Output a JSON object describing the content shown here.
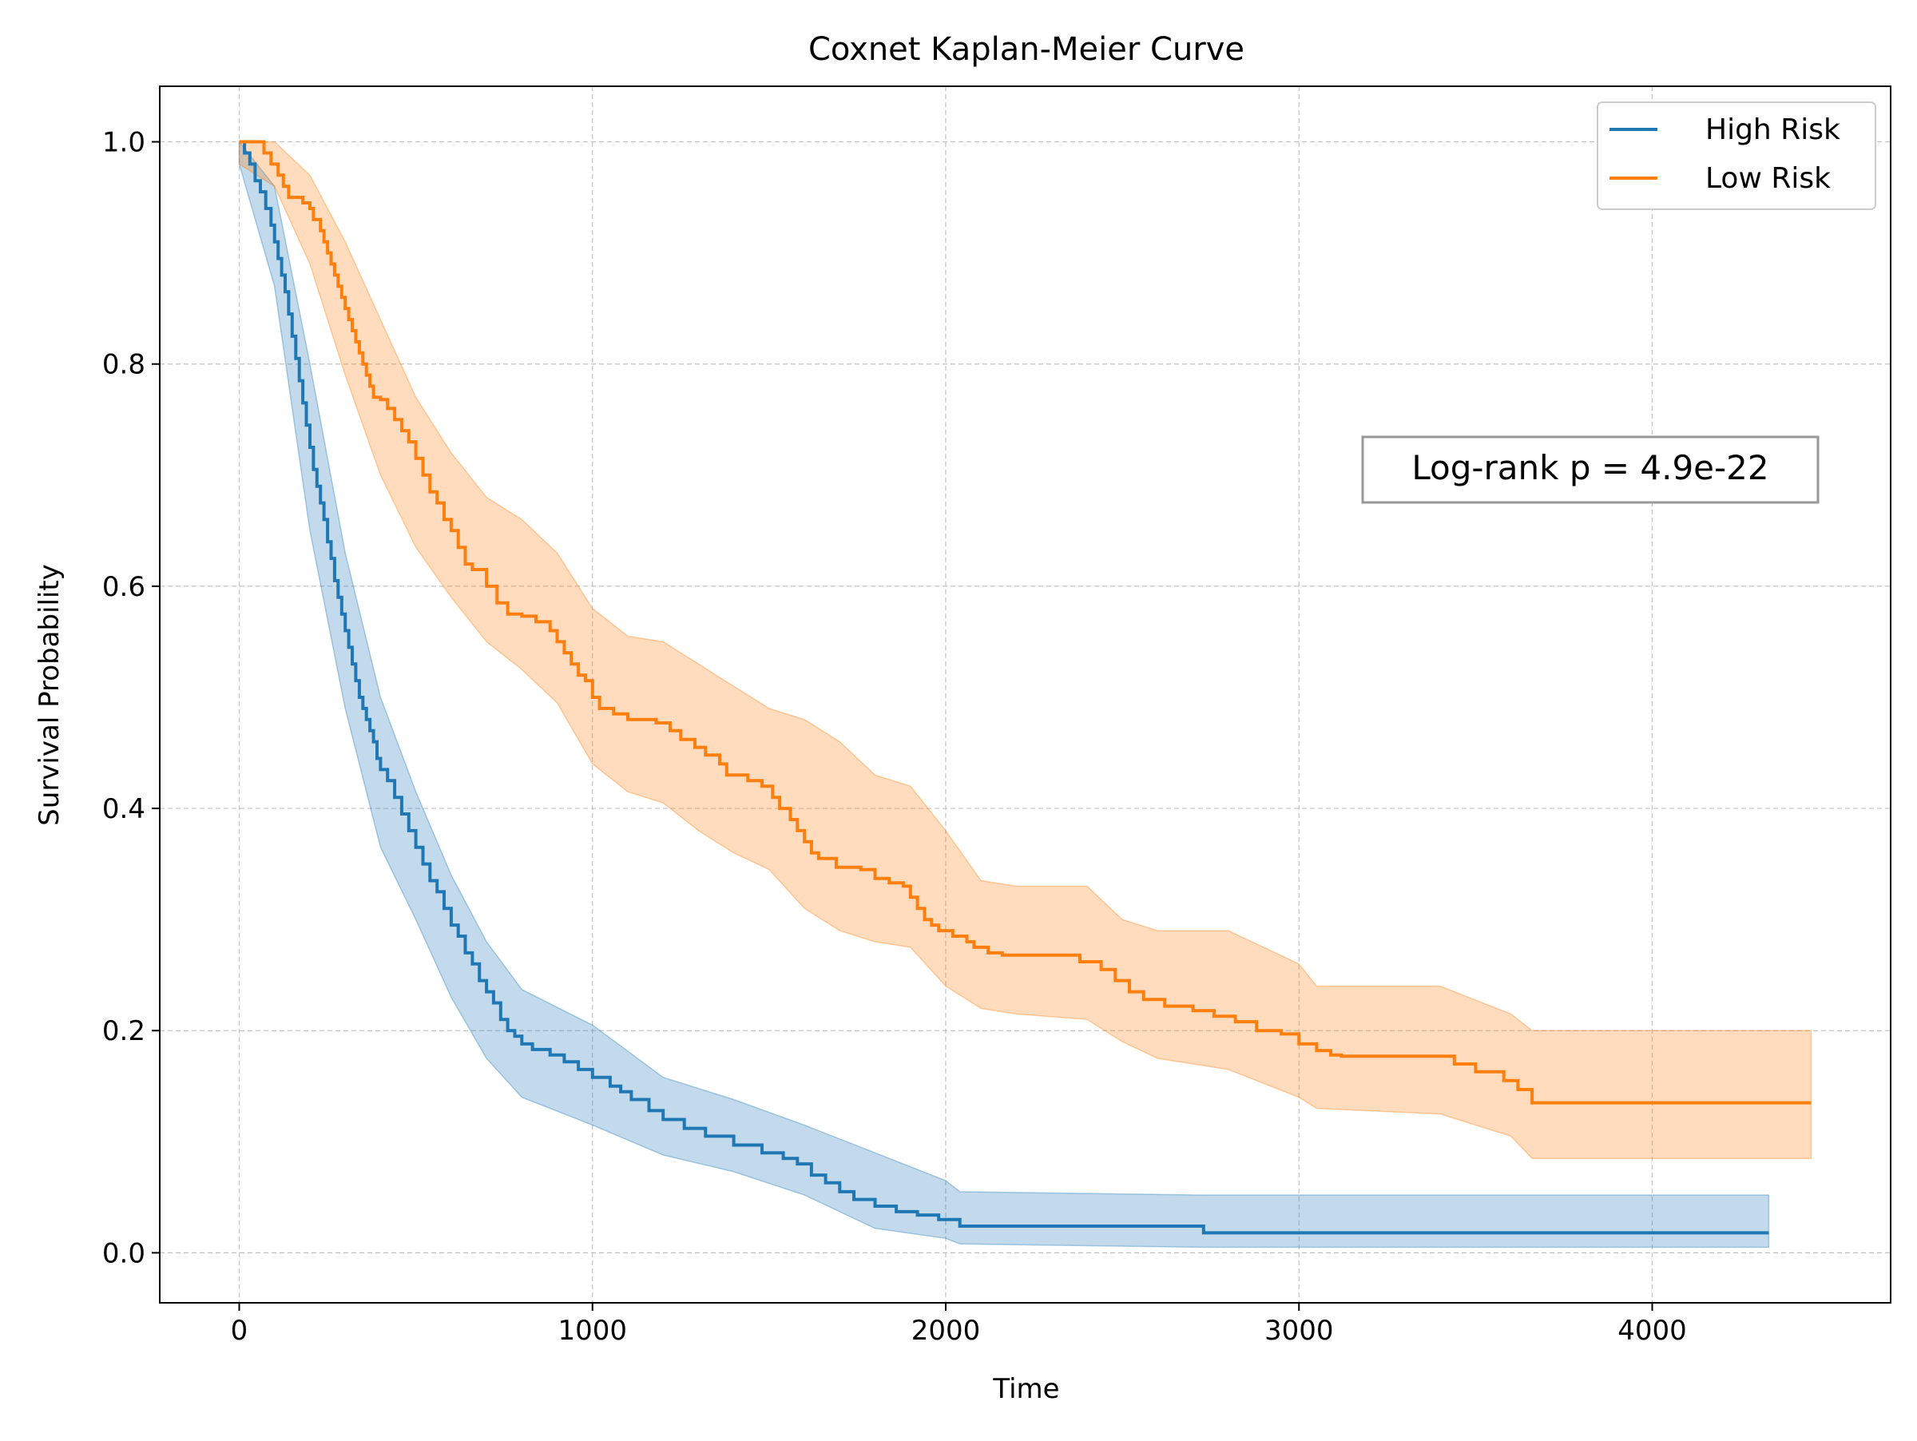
{
  "chart_data": {
    "type": "line",
    "title": "Coxnet Kaplan-Meier Curve",
    "xlabel": "Time",
    "ylabel": "Survival Probability",
    "xlim": [
      -225,
      4675
    ],
    "ylim": [
      -0.045,
      1.05
    ],
    "x_ticks": [
      0,
      1000,
      2000,
      3000,
      4000
    ],
    "y_ticks": [
      0.0,
      0.2,
      0.4,
      0.6,
      0.8,
      1.0
    ],
    "x_tick_labels": [
      "0",
      "1000",
      "2000",
      "3000",
      "4000"
    ],
    "y_tick_labels": [
      "0.0",
      "0.2",
      "0.4",
      "0.6",
      "0.8",
      "1.0"
    ],
    "grid": true,
    "legend_position": "top-right",
    "annotation": "Log-rank p = 4.9e-22",
    "series": [
      {
        "name": "High Risk",
        "color": "#1f77b4",
        "step_points": [
          [
            0,
            1.0
          ],
          [
            15,
            0.99
          ],
          [
            30,
            0.98
          ],
          [
            45,
            0.965
          ],
          [
            60,
            0.955
          ],
          [
            75,
            0.94
          ],
          [
            90,
            0.925
          ],
          [
            100,
            0.91
          ],
          [
            110,
            0.895
          ],
          [
            120,
            0.88
          ],
          [
            130,
            0.865
          ],
          [
            140,
            0.845
          ],
          [
            150,
            0.825
          ],
          [
            160,
            0.805
          ],
          [
            170,
            0.785
          ],
          [
            180,
            0.765
          ],
          [
            190,
            0.745
          ],
          [
            200,
            0.725
          ],
          [
            210,
            0.705
          ],
          [
            220,
            0.69
          ],
          [
            230,
            0.675
          ],
          [
            240,
            0.66
          ],
          [
            250,
            0.64
          ],
          [
            260,
            0.625
          ],
          [
            270,
            0.605
          ],
          [
            280,
            0.59
          ],
          [
            290,
            0.575
          ],
          [
            300,
            0.56
          ],
          [
            310,
            0.545
          ],
          [
            320,
            0.53
          ],
          [
            330,
            0.515
          ],
          [
            340,
            0.5
          ],
          [
            350,
            0.49
          ],
          [
            360,
            0.48
          ],
          [
            370,
            0.47
          ],
          [
            380,
            0.46
          ],
          [
            390,
            0.445
          ],
          [
            400,
            0.435
          ],
          [
            420,
            0.425
          ],
          [
            440,
            0.41
          ],
          [
            460,
            0.395
          ],
          [
            480,
            0.38
          ],
          [
            500,
            0.365
          ],
          [
            520,
            0.35
          ],
          [
            540,
            0.335
          ],
          [
            560,
            0.325
          ],
          [
            580,
            0.31
          ],
          [
            600,
            0.295
          ],
          [
            620,
            0.285
          ],
          [
            640,
            0.27
          ],
          [
            660,
            0.26
          ],
          [
            680,
            0.245
          ],
          [
            700,
            0.235
          ],
          [
            720,
            0.225
          ],
          [
            740,
            0.21
          ],
          [
            760,
            0.2
          ],
          [
            780,
            0.195
          ],
          [
            800,
            0.188
          ],
          [
            830,
            0.183
          ],
          [
            880,
            0.178
          ],
          [
            920,
            0.172
          ],
          [
            960,
            0.165
          ],
          [
            1000,
            0.158
          ],
          [
            1050,
            0.15
          ],
          [
            1080,
            0.145
          ],
          [
            1110,
            0.138
          ],
          [
            1160,
            0.128
          ],
          [
            1200,
            0.12
          ],
          [
            1260,
            0.112
          ],
          [
            1320,
            0.105
          ],
          [
            1400,
            0.097
          ],
          [
            1480,
            0.09
          ],
          [
            1540,
            0.085
          ],
          [
            1580,
            0.08
          ],
          [
            1620,
            0.07
          ],
          [
            1660,
            0.063
          ],
          [
            1700,
            0.055
          ],
          [
            1740,
            0.048
          ],
          [
            1800,
            0.042
          ],
          [
            1860,
            0.037
          ],
          [
            1920,
            0.034
          ],
          [
            1980,
            0.03
          ],
          [
            2040,
            0.024
          ],
          [
            2730,
            0.018
          ],
          [
            4330,
            0.018
          ]
        ],
        "ci_upper": [
          [
            0,
            1.0
          ],
          [
            100,
            0.96
          ],
          [
            200,
            0.8
          ],
          [
            300,
            0.63
          ],
          [
            400,
            0.5
          ],
          [
            500,
            0.415
          ],
          [
            600,
            0.34
          ],
          [
            700,
            0.28
          ],
          [
            800,
            0.237
          ],
          [
            1000,
            0.205
          ],
          [
            1200,
            0.158
          ],
          [
            1400,
            0.138
          ],
          [
            1600,
            0.115
          ],
          [
            1800,
            0.09
          ],
          [
            2000,
            0.065
          ],
          [
            2040,
            0.055
          ],
          [
            2730,
            0.052
          ],
          [
            4330,
            0.052
          ]
        ],
        "ci_lower": [
          [
            0,
            0.98
          ],
          [
            100,
            0.87
          ],
          [
            200,
            0.65
          ],
          [
            300,
            0.49
          ],
          [
            400,
            0.365
          ],
          [
            500,
            0.3
          ],
          [
            600,
            0.23
          ],
          [
            700,
            0.175
          ],
          [
            800,
            0.14
          ],
          [
            1000,
            0.115
          ],
          [
            1200,
            0.088
          ],
          [
            1400,
            0.073
          ],
          [
            1600,
            0.052
          ],
          [
            1800,
            0.022
          ],
          [
            2000,
            0.013
          ],
          [
            2040,
            0.008
          ],
          [
            2730,
            0.005
          ],
          [
            4330,
            0.005
          ]
        ]
      },
      {
        "name": "Low Risk",
        "color": "#ff7f0e",
        "step_points": [
          [
            0,
            1.0
          ],
          [
            55,
            1.0
          ],
          [
            70,
            0.99
          ],
          [
            90,
            0.98
          ],
          [
            110,
            0.97
          ],
          [
            125,
            0.96
          ],
          [
            140,
            0.95
          ],
          [
            180,
            0.945
          ],
          [
            200,
            0.94
          ],
          [
            210,
            0.93
          ],
          [
            230,
            0.92
          ],
          [
            240,
            0.91
          ],
          [
            250,
            0.9
          ],
          [
            260,
            0.89
          ],
          [
            270,
            0.88
          ],
          [
            280,
            0.87
          ],
          [
            290,
            0.86
          ],
          [
            300,
            0.85
          ],
          [
            310,
            0.84
          ],
          [
            320,
            0.83
          ],
          [
            330,
            0.82
          ],
          [
            340,
            0.81
          ],
          [
            350,
            0.8
          ],
          [
            360,
            0.79
          ],
          [
            370,
            0.78
          ],
          [
            380,
            0.77
          ],
          [
            400,
            0.768
          ],
          [
            420,
            0.76
          ],
          [
            440,
            0.75
          ],
          [
            460,
            0.74
          ],
          [
            480,
            0.73
          ],
          [
            500,
            0.715
          ],
          [
            520,
            0.7
          ],
          [
            540,
            0.685
          ],
          [
            560,
            0.675
          ],
          [
            580,
            0.66
          ],
          [
            600,
            0.65
          ],
          [
            620,
            0.635
          ],
          [
            640,
            0.62
          ],
          [
            660,
            0.615
          ],
          [
            700,
            0.6
          ],
          [
            730,
            0.585
          ],
          [
            760,
            0.575
          ],
          [
            800,
            0.573
          ],
          [
            840,
            0.568
          ],
          [
            880,
            0.56
          ],
          [
            900,
            0.55
          ],
          [
            920,
            0.54
          ],
          [
            940,
            0.53
          ],
          [
            960,
            0.52
          ],
          [
            980,
            0.515
          ],
          [
            1000,
            0.5
          ],
          [
            1020,
            0.49
          ],
          [
            1060,
            0.485
          ],
          [
            1100,
            0.48
          ],
          [
            1180,
            0.477
          ],
          [
            1220,
            0.47
          ],
          [
            1250,
            0.462
          ],
          [
            1290,
            0.455
          ],
          [
            1320,
            0.448
          ],
          [
            1360,
            0.44
          ],
          [
            1380,
            0.43
          ],
          [
            1440,
            0.425
          ],
          [
            1480,
            0.42
          ],
          [
            1510,
            0.41
          ],
          [
            1530,
            0.4
          ],
          [
            1560,
            0.39
          ],
          [
            1580,
            0.38
          ],
          [
            1600,
            0.37
          ],
          [
            1620,
            0.36
          ],
          [
            1640,
            0.355
          ],
          [
            1690,
            0.347
          ],
          [
            1760,
            0.345
          ],
          [
            1800,
            0.337
          ],
          [
            1840,
            0.333
          ],
          [
            1880,
            0.33
          ],
          [
            1900,
            0.32
          ],
          [
            1920,
            0.31
          ],
          [
            1940,
            0.3
          ],
          [
            1960,
            0.295
          ],
          [
            1980,
            0.29
          ],
          [
            2020,
            0.285
          ],
          [
            2060,
            0.28
          ],
          [
            2080,
            0.275
          ],
          [
            2120,
            0.27
          ],
          [
            2160,
            0.268
          ],
          [
            2380,
            0.262
          ],
          [
            2440,
            0.255
          ],
          [
            2480,
            0.245
          ],
          [
            2520,
            0.235
          ],
          [
            2560,
            0.228
          ],
          [
            2620,
            0.222
          ],
          [
            2700,
            0.218
          ],
          [
            2760,
            0.213
          ],
          [
            2820,
            0.208
          ],
          [
            2880,
            0.2
          ],
          [
            2950,
            0.197
          ],
          [
            3000,
            0.188
          ],
          [
            3050,
            0.182
          ],
          [
            3090,
            0.178
          ],
          [
            3120,
            0.177
          ],
          [
            3440,
            0.17
          ],
          [
            3500,
            0.163
          ],
          [
            3580,
            0.155
          ],
          [
            3620,
            0.147
          ],
          [
            3660,
            0.135
          ],
          [
            4450,
            0.135
          ]
        ],
        "ci_upper": [
          [
            0,
            1.0
          ],
          [
            100,
            1.0
          ],
          [
            200,
            0.97
          ],
          [
            300,
            0.91
          ],
          [
            400,
            0.84
          ],
          [
            500,
            0.77
          ],
          [
            600,
            0.72
          ],
          [
            700,
            0.68
          ],
          [
            800,
            0.66
          ],
          [
            900,
            0.63
          ],
          [
            1000,
            0.58
          ],
          [
            1100,
            0.555
          ],
          [
            1200,
            0.55
          ],
          [
            1300,
            0.53
          ],
          [
            1400,
            0.51
          ],
          [
            1500,
            0.49
          ],
          [
            1600,
            0.48
          ],
          [
            1700,
            0.46
          ],
          [
            1800,
            0.43
          ],
          [
            1900,
            0.42
          ],
          [
            2000,
            0.38
          ],
          [
            2100,
            0.335
          ],
          [
            2200,
            0.33
          ],
          [
            2400,
            0.33
          ],
          [
            2500,
            0.3
          ],
          [
            2600,
            0.29
          ],
          [
            2800,
            0.29
          ],
          [
            3000,
            0.26
          ],
          [
            3050,
            0.24
          ],
          [
            3400,
            0.24
          ],
          [
            3600,
            0.215
          ],
          [
            3660,
            0.2
          ],
          [
            4450,
            0.2
          ]
        ],
        "ci_lower": [
          [
            0,
            0.98
          ],
          [
            100,
            0.96
          ],
          [
            200,
            0.89
          ],
          [
            300,
            0.79
          ],
          [
            400,
            0.7
          ],
          [
            500,
            0.635
          ],
          [
            600,
            0.59
          ],
          [
            700,
            0.55
          ],
          [
            800,
            0.525
          ],
          [
            900,
            0.495
          ],
          [
            1000,
            0.44
          ],
          [
            1100,
            0.415
          ],
          [
            1200,
            0.405
          ],
          [
            1300,
            0.38
          ],
          [
            1400,
            0.36
          ],
          [
            1500,
            0.345
          ],
          [
            1600,
            0.31
          ],
          [
            1700,
            0.29
          ],
          [
            1800,
            0.28
          ],
          [
            1900,
            0.275
          ],
          [
            2000,
            0.24
          ],
          [
            2100,
            0.22
          ],
          [
            2200,
            0.215
          ],
          [
            2400,
            0.21
          ],
          [
            2500,
            0.19
          ],
          [
            2600,
            0.175
          ],
          [
            2800,
            0.165
          ],
          [
            3000,
            0.14
          ],
          [
            3050,
            0.13
          ],
          [
            3400,
            0.125
          ],
          [
            3600,
            0.105
          ],
          [
            3660,
            0.085
          ],
          [
            4450,
            0.085
          ]
        ]
      }
    ]
  }
}
